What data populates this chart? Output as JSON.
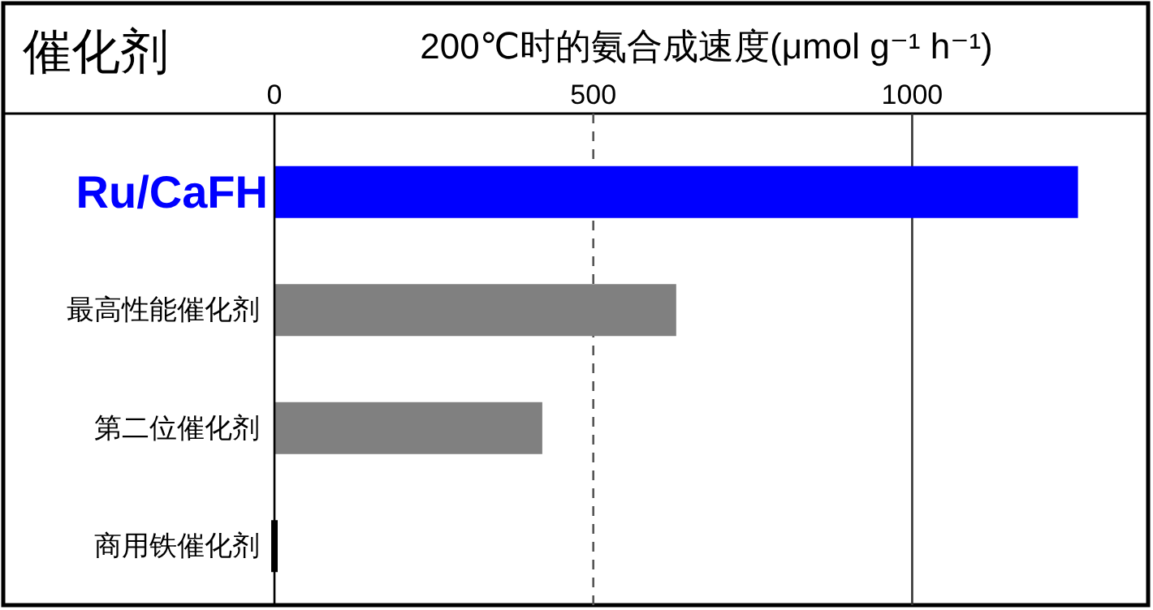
{
  "chart_data": {
    "type": "bar",
    "orientation": "horizontal",
    "title": "200℃时的氨合成速度(μmol g⁻¹ h⁻¹)",
    "ylabel": "催化剂",
    "categories": [
      "Ru/CaFH",
      "最高性能催化剂",
      "第二位催化剂",
      "商用铁催化剂"
    ],
    "values": [
      1260,
      630,
      420,
      5
    ],
    "colors": [
      "#0000ff",
      "#808080",
      "#808080",
      "#000000"
    ],
    "xlim": [
      0,
      1370
    ],
    "xticks": [
      0,
      500,
      1000
    ],
    "ref_lines": [
      {
        "axis": "x",
        "value": 500,
        "line_style": "dashed",
        "color": "#555555"
      },
      {
        "axis": "x",
        "value": 1000,
        "line_style": "solid",
        "color": "#333333"
      }
    ]
  }
}
